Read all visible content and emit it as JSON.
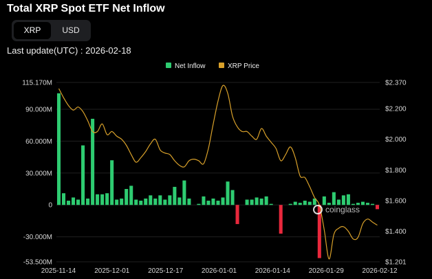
{
  "title": "Total XRP Spot ETF Net Inflow",
  "currency_toggle": {
    "options": [
      "XRP",
      "USD"
    ],
    "selected": "XRP"
  },
  "last_update": "Last update(UTC) : 2026-02-18",
  "watermark": "coinglass",
  "colors": {
    "inflow_pos": "#2ecc71",
    "inflow_neg": "#e8283c",
    "price": "#d9a12a",
    "grid": "#1f1f1f"
  },
  "chart_data": {
    "type": "bar",
    "legend_position": "top-center",
    "grid": true,
    "x_tick_labels": [
      "2025-11-14",
      "2025-12-01",
      "2025-12-17",
      "2026-01-01",
      "2026-01-14",
      "2026-01-29",
      "2026-02-12"
    ],
    "y_left": {
      "ticks": [
        "115.170M",
        "90.000M",
        "60.000M",
        "30.000M",
        "0",
        "-30.000M",
        "-53.500M"
      ],
      "range": [
        -53.5,
        115.17
      ],
      "unit": "M XRP"
    },
    "y_right": {
      "ticks": [
        "$2.370",
        "$2.200",
        "$2.000",
        "$1.800",
        "$1.600",
        "$1.400",
        "$1.201"
      ],
      "range": [
        1.201,
        2.37
      ]
    },
    "series": [
      {
        "name": "Net Inflow",
        "kind": "bar",
        "values": [
          105,
          11,
          4,
          7,
          5,
          56,
          6,
          81,
          10,
          10,
          11,
          42,
          5,
          6,
          15,
          18,
          5,
          4,
          6,
          9,
          6,
          9,
          5,
          9,
          17,
          7,
          23,
          6,
          0,
          1,
          8,
          4,
          6,
          4,
          7,
          22,
          14,
          -18,
          0,
          5,
          5,
          7,
          6,
          8,
          1,
          0,
          -27,
          0,
          1,
          3,
          2,
          4,
          3,
          6,
          -50,
          8,
          2,
          12,
          5,
          9,
          10,
          1,
          2,
          3,
          2,
          1,
          -4
        ]
      },
      {
        "name": "XRP Price",
        "kind": "line",
        "values": [
          2.33,
          2.27,
          2.22,
          2.19,
          2.21,
          2.18,
          2.12,
          2.05,
          2.05,
          2.1,
          2.03,
          2.05,
          2.02,
          2.0,
          1.96,
          1.9,
          1.85,
          1.88,
          1.92,
          1.97,
          2.0,
          1.93,
          1.91,
          1.9,
          1.86,
          1.83,
          1.82,
          1.86,
          1.87,
          1.86,
          1.84,
          1.94,
          2.1,
          2.25,
          2.35,
          2.3,
          2.15,
          2.08,
          2.05,
          2.05,
          2.02,
          2.0,
          2.07,
          2.02,
          1.98,
          1.94,
          1.86,
          1.9,
          1.95,
          1.88,
          1.76,
          1.75,
          1.69,
          1.62,
          1.57,
          1.41,
          1.22,
          1.38,
          1.42,
          1.43,
          1.4,
          1.35,
          1.36,
          1.45,
          1.48,
          1.46,
          1.44
        ]
      }
    ]
  }
}
